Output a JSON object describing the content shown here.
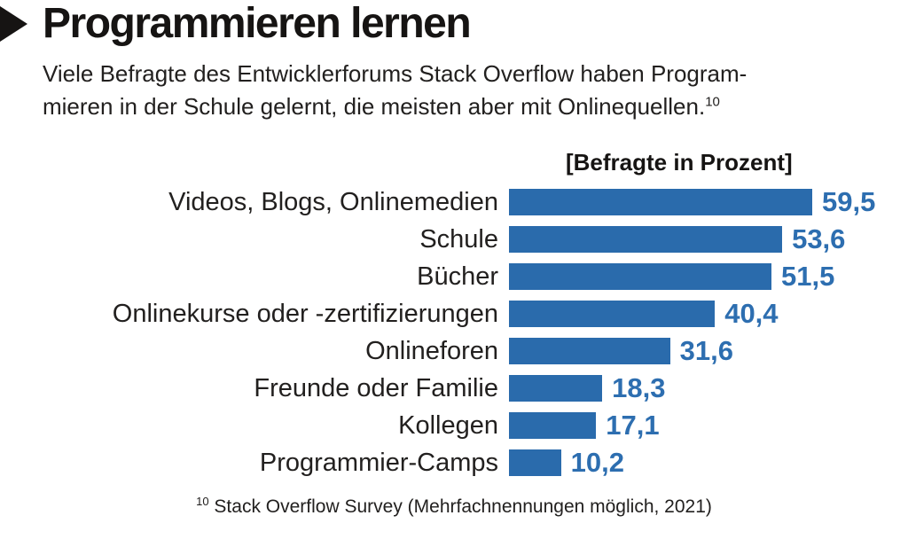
{
  "header": {
    "title": "Programmieren lernen",
    "subtitle_line1": "Viele Befragte des Entwicklerforums Stack Overflow haben Program-",
    "subtitle_line2": "mieren in der Schule gelernt, die meisten aber mit Onlinequellen.",
    "subtitle_footnote_ref": "10"
  },
  "chart_data": {
    "type": "bar",
    "orientation": "horizontal",
    "title": "[Befragte in Prozent]",
    "categories": [
      "Videos, Blogs, Onlinemedien",
      "Schule",
      "Bücher",
      "Onlinekurse oder -zertifizierungen",
      "Onlineforen",
      "Freunde oder Familie",
      "Kollegen",
      "Programmier-Camps"
    ],
    "values": [
      59.5,
      53.6,
      51.5,
      40.4,
      31.6,
      18.3,
      17.1,
      10.2
    ],
    "value_labels": [
      "59,5",
      "53,6",
      "51,5",
      "40,4",
      "31,6",
      "18,3",
      "17,1",
      "10,2"
    ],
    "xlim": [
      0,
      60
    ],
    "grid": false,
    "legend": false,
    "bar_color": "#2a6bac",
    "value_label_color": "#2d6eb0"
  },
  "footnote": {
    "ref": "10",
    "text": "Stack Overflow Survey (Mehrfachnennungen möglich, 2021)"
  }
}
